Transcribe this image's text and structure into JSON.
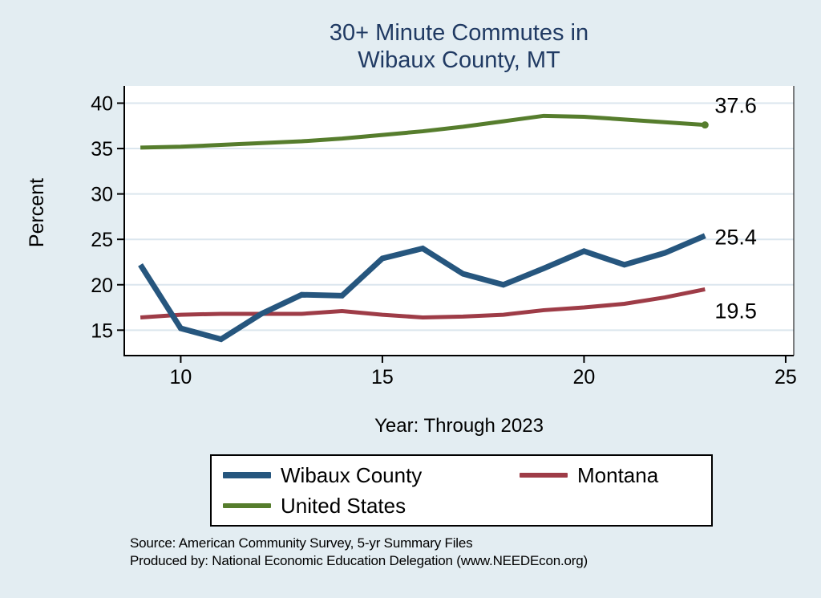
{
  "chart_data": {
    "type": "line",
    "title": "30+ Minute Commutes in Wibaux County, MT",
    "title_lines": [
      "30+ Minute Commutes in",
      "Wibaux County, MT"
    ],
    "xlabel": "Year: Through 2023",
    "ylabel": "Percent",
    "x": [
      9,
      10,
      11,
      12,
      13,
      14,
      15,
      16,
      17,
      18,
      19,
      20,
      21,
      22,
      23
    ],
    "x_years": [
      2009,
      2010,
      2011,
      2012,
      2013,
      2014,
      2015,
      2016,
      2017,
      2018,
      2019,
      2020,
      2021,
      2022,
      2023
    ],
    "x_ticks": [
      10,
      15,
      20,
      25
    ],
    "y_ticks": [
      15,
      20,
      25,
      30,
      35,
      40
    ],
    "xlim": [
      8.6,
      25.2
    ],
    "ylim": [
      12.2,
      41.9
    ],
    "grid": "horizontal",
    "legend_position": "bottom",
    "series": [
      {
        "name": "Wibaux County",
        "color": "#26567e",
        "line_width": 7,
        "values": [
          22.2,
          15.2,
          14.0,
          16.8,
          18.9,
          18.8,
          22.9,
          24.0,
          21.2,
          20.0,
          21.8,
          23.7,
          22.2,
          23.5,
          25.4
        ],
        "end_label": "25.4"
      },
      {
        "name": "Montana",
        "color": "#9e3c47",
        "line_width": 5,
        "values": [
          16.4,
          16.7,
          16.8,
          16.8,
          16.8,
          17.1,
          16.7,
          16.4,
          16.5,
          16.7,
          17.2,
          17.5,
          17.9,
          18.6,
          19.5
        ],
        "end_label": "19.5"
      },
      {
        "name": "United States",
        "color": "#567d2d",
        "line_width": 5,
        "values": [
          35.1,
          35.2,
          35.4,
          35.6,
          35.8,
          36.1,
          36.5,
          36.9,
          37.4,
          38.0,
          38.6,
          38.5,
          38.2,
          37.9,
          37.6
        ],
        "end_label": "37.6",
        "end_marker": true
      }
    ]
  },
  "footer": {
    "line1": "Source: American Community Survey, 5-yr Summary Files",
    "line2": "Produced by: National Economic Education Delegation (www.NEEDEcon.org)"
  },
  "colors": {
    "background": "#e3edf2",
    "plot_background": "#ffffff",
    "gridline": "#dbe6ee",
    "axis": "#000000",
    "title": "#203a63",
    "text": "#000000"
  }
}
